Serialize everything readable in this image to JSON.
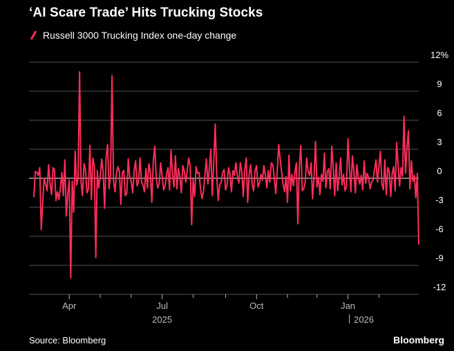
{
  "title": "‘AI Scare Trade’ Hits Trucking Stocks",
  "source": "Source: Bloomberg",
  "brand": "Bloomberg",
  "colors": {
    "background": "#000000",
    "series": "#ff2e5b",
    "grid": "#555555",
    "zero": "#ffffff",
    "text": "#ffffff",
    "muted": "#bbbbbb"
  },
  "chart_data": {
    "type": "line",
    "title": "‘AI Scare Trade’ Hits Trucking Stocks",
    "legend_position": "top-left",
    "series": [
      {
        "name": "Russell 3000 Trucking Index one-day change",
        "values": [
          -1.9,
          0.7,
          0.6,
          0.3,
          1.1,
          -5.3,
          -2.5,
          0.0,
          -0.6,
          -1.3,
          1.4,
          -0.6,
          -1.7,
          1.1,
          0.9,
          -2.3,
          -1.4,
          -2.2,
          -1.0,
          0.6,
          -1.8,
          1.9,
          -3.9,
          -1.6,
          -0.2,
          -10.3,
          -0.3,
          -3.5,
          2.8,
          -0.7,
          0.0,
          11.0,
          -0.4,
          -1.8,
          1.5,
          0.9,
          -1.5,
          -1.1,
          3.4,
          -2.2,
          2.1,
          1.3,
          -8.2,
          0.8,
          -1.0,
          0.2,
          2.0,
          0.6,
          -3.1,
          2.2,
          3.5,
          -1.1,
          0.4,
          10.6,
          -0.2,
          -1.4,
          0.5,
          1.2,
          0.7,
          -2.7,
          0.6,
          0.8,
          -1.8,
          -1.6,
          2.0,
          0.1,
          -0.3,
          -1.5,
          0.8,
          1.8,
          -0.8,
          -0.3,
          2.1,
          -0.4,
          -0.7,
          -1.4,
          1.0,
          -1.0,
          1.5,
          0.6,
          -2.5,
          1.8,
          3.3,
          0.1,
          -1.0,
          -0.5,
          1.6,
          0.2,
          -1.2,
          -0.8,
          0.4,
          1.1,
          -1.2,
          2.9,
          0.5,
          -0.9,
          2.3,
          -1.1,
          1.0,
          0.2,
          -1.5,
          1.3,
          0.7,
          -0.4,
          0.8,
          2.1,
          1.3,
          -4.8,
          -0.1,
          -1.9,
          1.2,
          0.5,
          0.6,
          -1.1,
          -2.1,
          -1.4,
          0.3,
          2.0,
          -0.6,
          1.0,
          3.0,
          -1.8,
          1.6,
          5.6,
          0.3,
          -2.3,
          -0.7,
          -0.4,
          0.6,
          0.9,
          -1.2,
          -0.7,
          1.1,
          0.4,
          -1.4,
          0.8,
          0.3,
          1.6,
          0.2,
          -0.5,
          1.6,
          0.7,
          -1.9,
          0.9,
          2.1,
          -2.5,
          0.4,
          1.4,
          -0.6,
          -1.3,
          0.8,
          1.3,
          -0.9,
          -0.5,
          0.4,
          -0.2,
          1.3,
          0.3,
          -1.0,
          0.8,
          -0.4,
          1.6,
          1.4,
          0.1,
          -1.6,
          0.6,
          3.5,
          2.0,
          0.7,
          -0.6,
          -1.4,
          0.2,
          -2.5,
          2.4,
          -1.3,
          0.4,
          -0.8,
          0.6,
          1.6,
          -4.7,
          1.2,
          3.4,
          -1.3,
          -1.1,
          -0.4,
          2.1,
          0.7,
          0.3,
          1.6,
          -2.1,
          0.2,
          3.8,
          -0.9,
          0.1,
          -1.7,
          0.4,
          -0.3,
          2.6,
          -1.0,
          0.7,
          1.0,
          -1.1,
          3.3,
          1.1,
          -1.8,
          1.6,
          -1.3,
          0.1,
          2.1,
          -0.7,
          0.4,
          -1.3,
          -0.9,
          4.1,
          1.1,
          -1.4,
          2.3,
          0.8,
          -1.5,
          1.4,
          0.1,
          -0.6,
          0.3,
          -1.2,
          1.8,
          -0.5,
          0.5,
          0.1,
          -1.1,
          -0.4,
          -0.2,
          0.9,
          1.9,
          -0.4,
          1.3,
          2.8,
          -0.6,
          -1.2,
          1.9,
          -1.7,
          1.1,
          0.7,
          -1.9,
          0.5,
          1.2,
          -1.3,
          3.7,
          1.4,
          -0.8,
          1.1,
          0.2,
          6.4,
          0.5,
          3.2,
          4.9,
          -1.1,
          1.8,
          -0.3,
          0.3,
          -2.0,
          0.5,
          -6.8
        ]
      }
    ],
    "ylim": [
      -12,
      12
    ],
    "yticks": [
      12,
      9,
      6,
      3,
      0,
      -3,
      -6,
      -9,
      -12
    ],
    "ytick_labels": [
      "12%",
      "9",
      "6",
      "3",
      "0",
      "-3",
      "-6",
      "-9",
      "-12"
    ],
    "xticks": [
      {
        "label": "Apr",
        "index": 24
      },
      {
        "label": "Jul",
        "index": 87
      },
      {
        "label": "Oct",
        "index": 151
      },
      {
        "label": "Jan",
        "index": 213
      }
    ],
    "x_minor_ticks": [
      45,
      66,
      108,
      130,
      172,
      192,
      234
    ],
    "year_labels": [
      {
        "label": "2025",
        "index": 87
      },
      {
        "label": "2026",
        "index": 213
      }
    ],
    "zero_line": true,
    "grid": "horizontal",
    "xlabel": "",
    "ylabel": ""
  }
}
